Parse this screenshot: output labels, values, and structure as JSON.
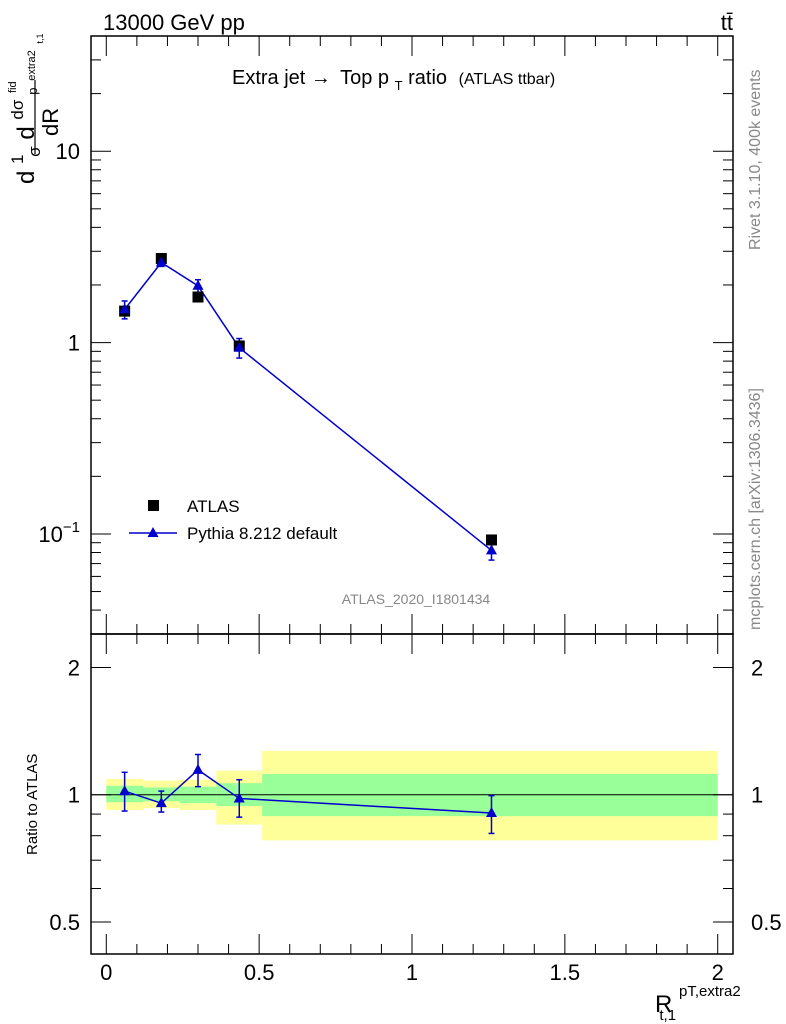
{
  "header": {
    "energy": "13000 GeV pp",
    "process": "tt̄"
  },
  "side_labels": {
    "rivet": "Rivet 3.1.10,  400k events",
    "source": "mcplots.cern.ch [arXiv:1306.3436]"
  },
  "analysis_id": "ATLAS_2020_I1801434",
  "colors": {
    "data": "#000000",
    "mc": "#0000cc",
    "band_inner": "#99ff99",
    "band_outer": "#ffff99"
  },
  "chart_data": [
    {
      "type": "scatter",
      "panel": "main",
      "title_main": "Extra jet",
      "title_arrow": "→",
      "title_top": "Top p",
      "title_sub": "T",
      "title_ratio": " ratio",
      "title_suffix": "(ATLAS ttbar)",
      "yscale": "log",
      "ylim": [
        0.03,
        40
      ],
      "xlim": [
        -0.05,
        2.05
      ],
      "ylabel": {
        "d1": "d",
        "one": "1",
        "sigma": "σ",
        "d2": "d",
        "dsigma": "dσ",
        "fid": "fid",
        "psub": "p",
        "extra": "extra2",
        "t1": "t,1",
        "dR": "dR"
      },
      "y_ticks": [
        {
          "value": 0.1,
          "base": "10",
          "exp": "−1"
        },
        {
          "value": 1,
          "base": "1",
          "exp": ""
        },
        {
          "value": 10,
          "base": "10",
          "exp": ""
        }
      ],
      "legend": {
        "position": "lower-left",
        "entries": [
          "ATLAS",
          "Pythia 8.212 default"
        ]
      },
      "series": [
        {
          "name": "ATLAS",
          "marker": "square",
          "x": [
            0.06,
            0.18,
            0.3,
            0.435,
            1.26
          ],
          "y": [
            1.46,
            2.75,
            1.73,
            0.96,
            0.093
          ],
          "yerr_low": [
            1.39,
            2.68,
            1.68,
            0.92,
            0.091
          ],
          "yerr_high": [
            1.53,
            2.82,
            1.78,
            1.0,
            0.095
          ]
        },
        {
          "name": "Pythia 8.212 default",
          "marker": "triangle",
          "x": [
            0.06,
            0.18,
            0.3,
            0.435,
            1.26
          ],
          "y": [
            1.49,
            2.62,
            1.98,
            0.94,
            0.082
          ],
          "yerr_low": [
            1.33,
            2.5,
            1.83,
            0.83,
            0.073
          ],
          "yerr_high": [
            1.65,
            2.74,
            2.13,
            1.05,
            0.091
          ]
        }
      ]
    },
    {
      "type": "scatter",
      "panel": "ratio",
      "ylabel": "Ratio to ATLAS",
      "xlabel_main": "R",
      "xlabel_sup": "pT,extra2",
      "xlabel_sub": "t,1",
      "yscale": "log",
      "ylim": [
        0.42,
        2.4
      ],
      "xlim": [
        -0.05,
        2.05
      ],
      "x_ticks": [
        "0",
        "0.5",
        "1",
        "1.5",
        "2"
      ],
      "x_tick_values": [
        0,
        0.5,
        1,
        1.5,
        2
      ],
      "y_ticks": [
        "0.5",
        "1",
        "2"
      ],
      "y_tick_values": [
        0.5,
        1,
        2
      ],
      "bands": [
        {
          "x0": 0.0,
          "x1": 0.12,
          "inner": [
            0.96,
            1.05
          ],
          "outer": [
            0.92,
            1.09
          ]
        },
        {
          "x0": 0.12,
          "x1": 0.24,
          "inner": [
            0.965,
            1.04
          ],
          "outer": [
            0.93,
            1.08
          ]
        },
        {
          "x0": 0.24,
          "x1": 0.36,
          "inner": [
            0.955,
            1.045
          ],
          "outer": [
            0.92,
            1.085
          ]
        },
        {
          "x0": 0.36,
          "x1": 0.51,
          "inner": [
            0.94,
            1.065
          ],
          "outer": [
            0.85,
            1.14
          ]
        },
        {
          "x0": 0.51,
          "x1": 2.0,
          "inner": [
            0.89,
            1.12
          ],
          "outer": [
            0.78,
            1.27
          ]
        }
      ],
      "series": [
        {
          "name": "Pythia 8.212 default",
          "x": [
            0.06,
            0.18,
            0.3,
            0.435,
            1.26
          ],
          "y": [
            1.02,
            0.955,
            1.145,
            0.98,
            0.905
          ],
          "yerr_low": [
            0.915,
            0.91,
            1.045,
            0.885,
            0.81
          ],
          "yerr_high": [
            1.13,
            1.02,
            1.245,
            1.085,
            0.995
          ]
        }
      ]
    }
  ]
}
